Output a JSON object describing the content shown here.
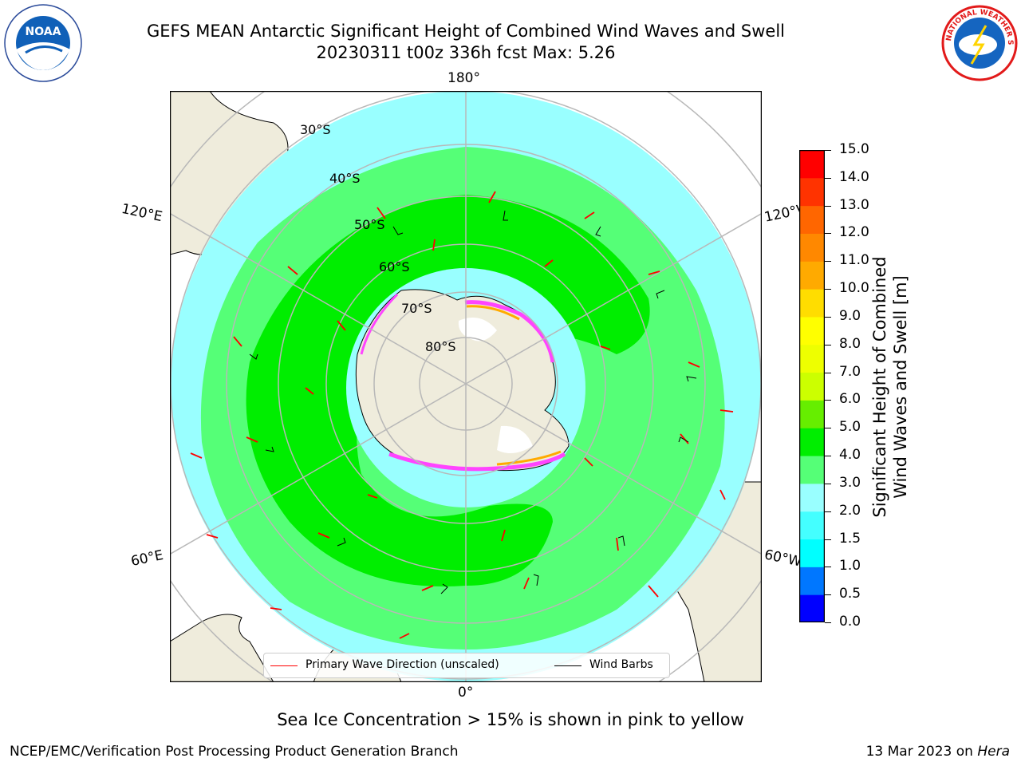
{
  "title": {
    "line1": "GEFS MEAN Antarctic Significant Height of Combined Wind Waves and Swell",
    "line2": "20230311 t00z 336h fcst   Max: 5.26"
  },
  "logos": {
    "left": "NOAA",
    "right": "NATIONAL WEATHER SERVICE"
  },
  "map": {
    "projection": "south-polar-stereographic",
    "longitude_labels": [
      "180°",
      "120°E",
      "120°W",
      "60°E",
      "60°W",
      "0°"
    ],
    "latitude_labels": [
      "30°S",
      "40°S",
      "50°S",
      "60°S",
      "70°S",
      "80°S"
    ],
    "land_color": "#efecdc",
    "ocean_colors": {
      "2.0-3.0": "#99ffff",
      "3.0-4.0": "#55ff77",
      "4.0-5.0": "#00ee00"
    },
    "sea_ice_colors": [
      "#ff44ff",
      "#ffaa00",
      "#ffff00"
    ]
  },
  "legend": {
    "items": [
      {
        "label": "Primary Wave Direction (unscaled)",
        "color": "#ff0000"
      },
      {
        "label": "Wind Barbs",
        "color": "#000000"
      }
    ]
  },
  "colorbar": {
    "label_line1": "Significant Height of Combined",
    "label_line2": "Wind Waves and Swell [m]",
    "ticks": [
      "0.0",
      "0.5",
      "1.0",
      "1.5",
      "2.0",
      "3.0",
      "4.0",
      "5.0",
      "6.0",
      "7.0",
      "8.0",
      "9.0",
      "10.0",
      "11.0",
      "12.0",
      "13.0",
      "14.0",
      "15.0"
    ],
    "colors": [
      "#0000ff",
      "#0077ff",
      "#00ffff",
      "#44ffff",
      "#99ffff",
      "#55ff77",
      "#00ee00",
      "#66ee00",
      "#ccff00",
      "#eeff00",
      "#ffff00",
      "#ffdd00",
      "#ffaa00",
      "#ff8800",
      "#ff6600",
      "#ff3300",
      "#ff0000"
    ]
  },
  "footnote": "Sea Ice Concentration > 15% is shown in pink to yellow",
  "credit": "NCEP/EMC/Verification Post Processing Product Generation Branch",
  "date_prefix": "13 Mar 2023 on ",
  "date_host": "Hera"
}
